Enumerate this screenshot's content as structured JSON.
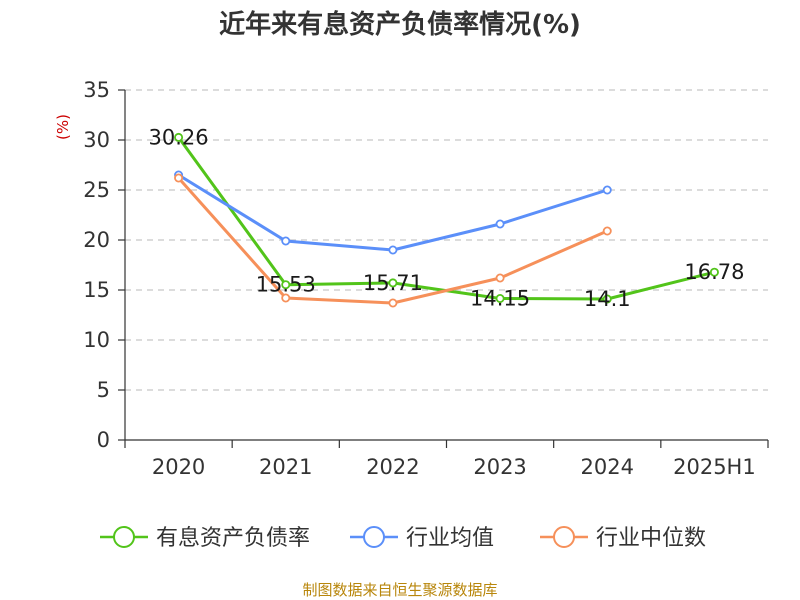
{
  "chart_data": {
    "type": "line",
    "title": "近年来有息资产负债率情况(%)",
    "ylabel": "(%)",
    "categories": [
      "2020",
      "2021",
      "2022",
      "2023",
      "2024",
      "2025H1"
    ],
    "ylim": [
      0,
      35
    ],
    "yticks": [
      0,
      5,
      10,
      15,
      20,
      25,
      30,
      35
    ],
    "grid": "horizontal-dashed",
    "legend_position": "bottom",
    "series": [
      {
        "name": "有息资产负债率",
        "color": "#52c41a",
        "values": [
          30.26,
          15.53,
          15.71,
          14.15,
          14.1,
          16.78
        ],
        "labels": [
          "30.26",
          "15.53",
          "15.71",
          "14.15",
          "14.1",
          "16.78"
        ]
      },
      {
        "name": "行业均值",
        "color": "#5b8ff9",
        "values": [
          26.5,
          19.9,
          19.0,
          21.6,
          25.0,
          null
        ]
      },
      {
        "name": "行业中位数",
        "color": "#f6905a",
        "values": [
          26.2,
          14.2,
          13.7,
          16.2,
          20.9,
          null
        ]
      }
    ],
    "source": "制图数据来自恒生聚源数据库"
  }
}
